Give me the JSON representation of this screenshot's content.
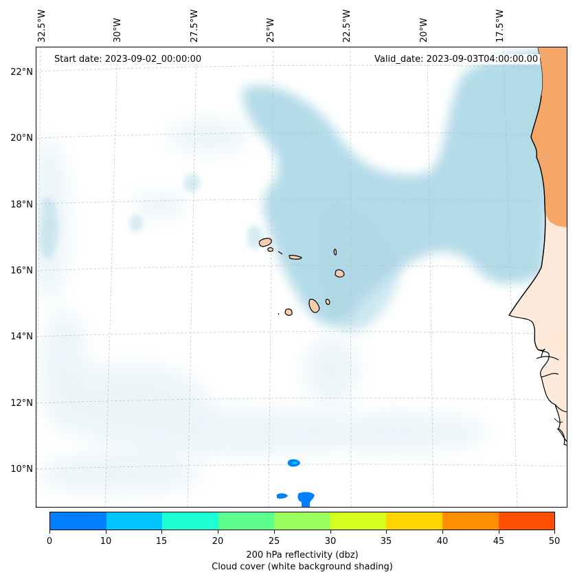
{
  "map": {
    "lon_labels": [
      "32.5°W",
      "30°W",
      "27.5°W",
      "25°W",
      "22.5°W",
      "20°W",
      "17.5°W"
    ],
    "lat_labels": [
      "22°N",
      "20°N",
      "18°N",
      "16°N",
      "14°N",
      "12°N",
      "10°N"
    ],
    "start_date": "Start date: 2023-09-02_00:00:00",
    "valid_date": "Valid_date: 2023-09-03T04:00:00.00"
  },
  "colorbar": {
    "colors": [
      "#007fff",
      "#00c5ff",
      "#1fffd5",
      "#5cff8f",
      "#99ff5c",
      "#d5ff1f",
      "#ffd500",
      "#ff8f00",
      "#ff4f00"
    ],
    "ticks": [
      "0",
      "10",
      "15",
      "20",
      "25",
      "30",
      "35",
      "40",
      "45",
      "50"
    ],
    "label": "200 hPa reflectivity (dbz)",
    "sublabel": "Cloud cover (white background shading)"
  },
  "colors": {
    "cloud": "#add8e6",
    "land_orange": "#f4a15f",
    "land_light": "#fce3d0",
    "echo_blue": "#007fff"
  }
}
